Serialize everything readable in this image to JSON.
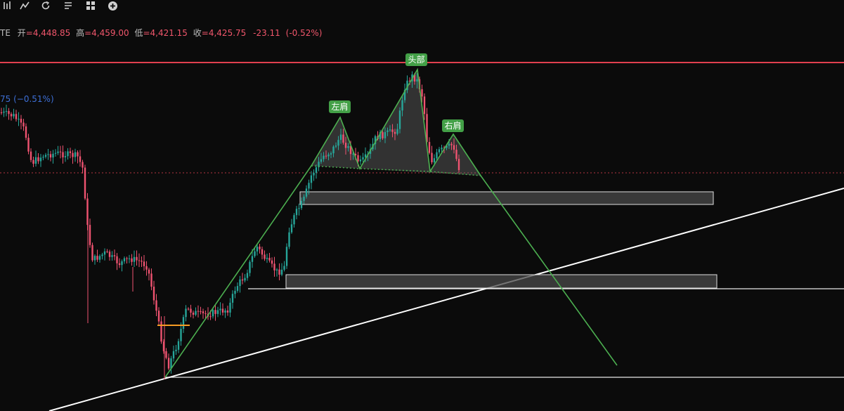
{
  "toolbar": {
    "icons": [
      "indicators-chart-icon",
      "undo-refresh-icon",
      "templates-icon",
      "layouts-grid-icon",
      "add-plus-icon"
    ]
  },
  "legend": {
    "symbol_fragment": "TE",
    "open_label": "开",
    "open_value": "=4,448.85",
    "high_label": "高",
    "high_value": "=4,459.00",
    "low_label": "低",
    "low_value": "=4,421.15",
    "close_label": "收",
    "close_value": "=4,425.75",
    "change": "-23.11",
    "change_pct": "(-0.52%)"
  },
  "indicator_readout": "75 (−0.51%)",
  "pattern_labels": {
    "left_shoulder": "左肩",
    "head": "头部",
    "right_shoulder": "右肩"
  },
  "colors": {
    "background": "#0b0b0b",
    "up": "#26a69a",
    "down": "#ef5370",
    "pattern_line": "#4caf50",
    "label_bg": "#43a047",
    "resistance": "#e0404f",
    "trendline": "#ffffff",
    "last_price_dotted": "#e0404f"
  }
}
